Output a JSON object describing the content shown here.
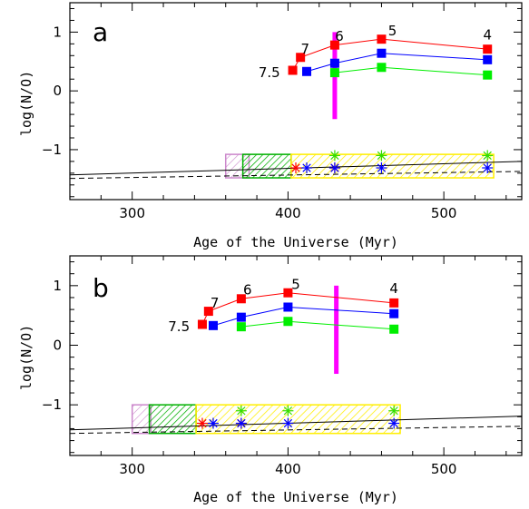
{
  "colors": {
    "red": "#ff0000",
    "blue": "#0000ff",
    "green": "#00ee00",
    "magenta": "#ff00ff",
    "yellow": "#ffee00",
    "violet": "#cc88cc",
    "darkgreen": "#00b000"
  },
  "chart_data": [
    {
      "type": "scatter",
      "panel": "a",
      "xlabel": "Age of the Universe (Myr)",
      "ylabel": "log(N/O)",
      "xlim": [
        260,
        550
      ],
      "ylim": [
        -1.85,
        1.5
      ],
      "xticks": [
        300,
        400,
        500
      ],
      "yticks": [
        -1,
        0,
        1
      ],
      "series": [
        {
          "color": "red",
          "x": [
            403,
            408,
            430,
            460,
            528
          ],
          "values": [
            0.35,
            0.57,
            0.78,
            0.88,
            0.71
          ]
        },
        {
          "color": "blue",
          "x": [
            412,
            430,
            460,
            528
          ],
          "values": [
            0.33,
            0.47,
            0.64,
            0.53
          ]
        },
        {
          "color": "green",
          "x": [
            430,
            460,
            528
          ],
          "values": [
            0.31,
            0.4,
            0.27
          ]
        }
      ],
      "model_labels": [
        {
          "text": "7.5",
          "x": 388,
          "y": 0.31
        },
        {
          "text": "7",
          "x": 411,
          "y": 0.71
        },
        {
          "text": "6",
          "x": 433,
          "y": 0.93
        },
        {
          "text": "5",
          "x": 467,
          "y": 1.02
        },
        {
          "text": "4",
          "x": 528,
          "y": 0.95
        }
      ],
      "vbar": {
        "x": 430,
        "y_min": -0.48,
        "y_max": 1.0
      },
      "boxes": [
        {
          "kind": "violet",
          "x0": 360,
          "x1": 375,
          "y0": -1.48,
          "y1": -1.08
        },
        {
          "kind": "green",
          "x0": 371,
          "x1": 402,
          "y0": -1.48,
          "y1": -1.08
        },
        {
          "kind": "yellow",
          "x0": 402,
          "x1": 532,
          "y0": -1.48,
          "y1": -1.08
        }
      ],
      "stars_top": {
        "x": [
          430,
          460,
          528
        ],
        "y": -1.1
      },
      "stars_bottom": [
        {
          "x": 405,
          "color": "red"
        },
        {
          "x": 412,
          "color": "blue"
        },
        {
          "x": 430,
          "color": "red"
        },
        {
          "x": 430,
          "color": "blue"
        },
        {
          "x": 460,
          "color": "blue"
        },
        {
          "x": 528,
          "color": "blue"
        }
      ],
      "stars_bottom_y": -1.31,
      "solid_line": [
        [
          260,
          -1.43
        ],
        [
          550,
          -1.2
        ]
      ],
      "dashed_line": [
        [
          260,
          -1.49
        ],
        [
          550,
          -1.37
        ]
      ]
    },
    {
      "type": "scatter",
      "panel": "b",
      "xlabel": "Age of the Universe (Myr)",
      "ylabel": "log(N/O)",
      "xlim": [
        260,
        550
      ],
      "ylim": [
        -1.85,
        1.5
      ],
      "xticks": [
        300,
        400,
        500
      ],
      "yticks": [
        -1,
        0,
        1
      ],
      "series": [
        {
          "color": "red",
          "x": [
            345,
            349,
            370,
            400,
            468
          ],
          "values": [
            0.35,
            0.57,
            0.78,
            0.88,
            0.71
          ]
        },
        {
          "color": "blue",
          "x": [
            352,
            370,
            400,
            468
          ],
          "values": [
            0.33,
            0.47,
            0.64,
            0.53
          ]
        },
        {
          "color": "green",
          "x": [
            370,
            400,
            468
          ],
          "values": [
            0.31,
            0.4,
            0.27
          ]
        }
      ],
      "model_labels": [
        {
          "text": "7.5",
          "x": 330,
          "y": 0.31
        },
        {
          "text": "7",
          "x": 353,
          "y": 0.71
        },
        {
          "text": "6",
          "x": 374,
          "y": 0.93
        },
        {
          "text": "5",
          "x": 405,
          "y": 1.02
        },
        {
          "text": "4",
          "x": 468,
          "y": 0.95
        }
      ],
      "vbar": {
        "x": 431,
        "y_min": -0.48,
        "y_max": 1.0
      },
      "boxes": [
        {
          "kind": "violet",
          "x0": 300,
          "x1": 312,
          "y0": -1.48,
          "y1": -1.0
        },
        {
          "kind": "green",
          "x0": 311,
          "x1": 341,
          "y0": -1.48,
          "y1": -1.0
        },
        {
          "kind": "yellow",
          "x0": 341,
          "x1": 472,
          "y0": -1.48,
          "y1": -1.0
        }
      ],
      "stars_top": {
        "x": [
          370,
          400,
          468
        ],
        "y": -1.1
      },
      "stars_bottom": [
        {
          "x": 345,
          "color": "red"
        },
        {
          "x": 352,
          "color": "blue"
        },
        {
          "x": 370,
          "color": "red"
        },
        {
          "x": 370,
          "color": "blue"
        },
        {
          "x": 400,
          "color": "blue"
        },
        {
          "x": 468,
          "color": "blue"
        }
      ],
      "stars_bottom_y": -1.31,
      "solid_line": [
        [
          260,
          -1.42
        ],
        [
          550,
          -1.19
        ]
      ],
      "dashed_line": [
        [
          260,
          -1.48
        ],
        [
          550,
          -1.36
        ]
      ]
    }
  ]
}
